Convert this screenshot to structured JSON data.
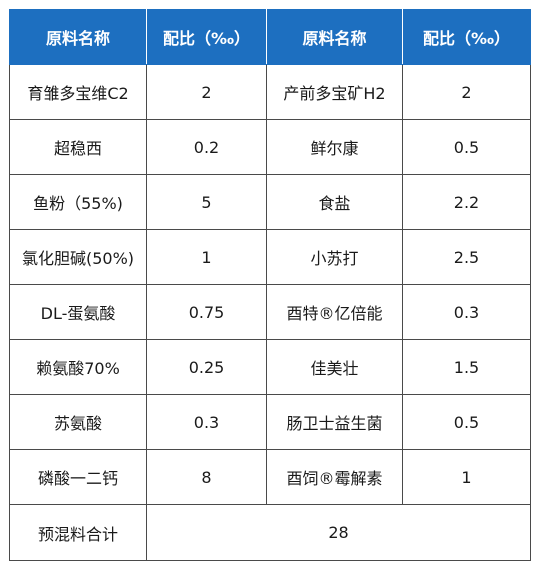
{
  "table": {
    "headers": [
      "原料名称",
      "配比（‰）",
      "原料名称",
      "配比（‰）"
    ],
    "rows": [
      [
        "育雏多宝维C2",
        "2",
        "产前多宝矿H2",
        "2"
      ],
      [
        "超稳西",
        "0.2",
        "鲜尔康",
        "0.5"
      ],
      [
        "鱼粉（55%)",
        "5",
        "食盐",
        "2.2"
      ],
      [
        "氯化胆碱(50%)",
        "1",
        "小苏打",
        "2.5"
      ],
      [
        "DL-蛋氨酸",
        "0.75",
        "酉特®亿倍能",
        "0.3"
      ],
      [
        "赖氨酸70%",
        "0.25",
        "佳美壮",
        "1.5"
      ],
      [
        "苏氨酸",
        "0.3",
        "肠卫士益生菌",
        "0.5"
      ],
      [
        "磷酸一二钙",
        "8",
        "酉饲®霉解素",
        "1"
      ]
    ],
    "total": {
      "label": "预混料合计",
      "value": "28"
    }
  },
  "colors": {
    "header_bg": "#1d6fc0",
    "header_text": "#ffffff",
    "border": "#4a4a4a"
  }
}
